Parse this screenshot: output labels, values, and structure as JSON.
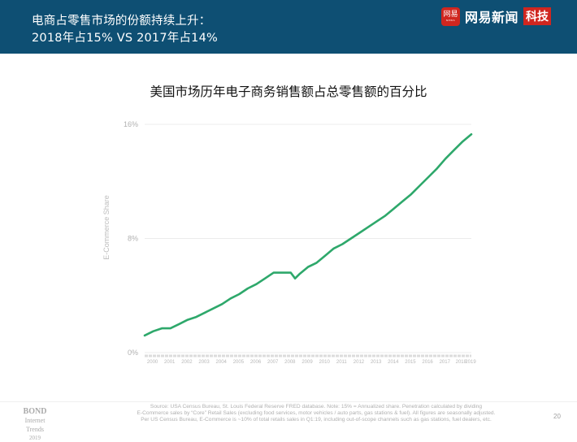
{
  "header": {
    "title": "电商占零售市场的份额持续上升：\n2018年占15% VS 2017年占14%",
    "brand_logo_text": "网易",
    "brand_logo_sub": "NEWS",
    "brand_name": "网易新闻",
    "brand_tag": "科技",
    "background_color": "#0e4f73",
    "brand_red": "#d0261f"
  },
  "chart": {
    "title": "美国市场历年电子商务销售额占总零售额的百分比",
    "ylabel": "E-Commerce Share",
    "line_color": "#2ea86b"
  },
  "chart_data": {
    "type": "line",
    "title": "美国市场历年电子商务销售额占总零售额的百分比",
    "xlabel": "",
    "ylabel": "E-Commerce Share",
    "ylim": [
      0,
      16
    ],
    "yticks": [
      "0%",
      "8%",
      "16%"
    ],
    "grid": true,
    "legend": "none",
    "categories": [
      "2000",
      "2001",
      "2002",
      "2003",
      "2004",
      "2005",
      "2006",
      "2007",
      "2008",
      "2009",
      "2010",
      "2011",
      "2012",
      "2013",
      "2014",
      "2015",
      "2016",
      "2017",
      "2018",
      "2019"
    ],
    "series": [
      {
        "name": "E-Commerce Share (%)",
        "x": [
          2000.0,
          2000.5,
          2001.0,
          2001.5,
          2002.0,
          2002.5,
          2003.0,
          2003.5,
          2004.0,
          2004.5,
          2005.0,
          2005.5,
          2006.0,
          2006.5,
          2007.0,
          2007.5,
          2008.0,
          2008.5,
          2008.75,
          2009.0,
          2009.5,
          2010.0,
          2010.5,
          2011.0,
          2011.5,
          2012.0,
          2012.5,
          2013.0,
          2013.5,
          2014.0,
          2014.5,
          2015.0,
          2015.5,
          2016.0,
          2016.5,
          2017.0,
          2017.5,
          2018.0,
          2018.5,
          2019.0
        ],
        "values": [
          1.2,
          1.5,
          1.7,
          1.7,
          2.0,
          2.3,
          2.5,
          2.8,
          3.1,
          3.4,
          3.8,
          4.1,
          4.5,
          4.8,
          5.2,
          5.6,
          5.6,
          5.6,
          5.2,
          5.5,
          6.0,
          6.3,
          6.8,
          7.3,
          7.6,
          8.0,
          8.4,
          8.8,
          9.2,
          9.6,
          10.1,
          10.6,
          11.1,
          11.7,
          12.3,
          12.9,
          13.6,
          14.2,
          14.8,
          15.3
        ]
      }
    ]
  },
  "footer": {
    "bond_line1": "BOND",
    "bond_line2": "Internet Trends",
    "bond_line3": "2019",
    "source_line1": "Source: USA Census Bureau, St. Louis Federal Reserve FRED database.  Note: 15% = Annualized share.  Penetration calculated by dividing",
    "source_line2": "E-Commerce sales by “Core” Retail Sales (excluding food services, motor vehicles / auto parts, gas stations & fuel). All figures are seasonally adjusted.",
    "source_line3": "Per US Census Bureau, E-Commerce is ~10% of total retails sales in Q1:19, including out-of-scope channels such as gas stations, fuel dealers, etc.",
    "page_number": "20"
  }
}
